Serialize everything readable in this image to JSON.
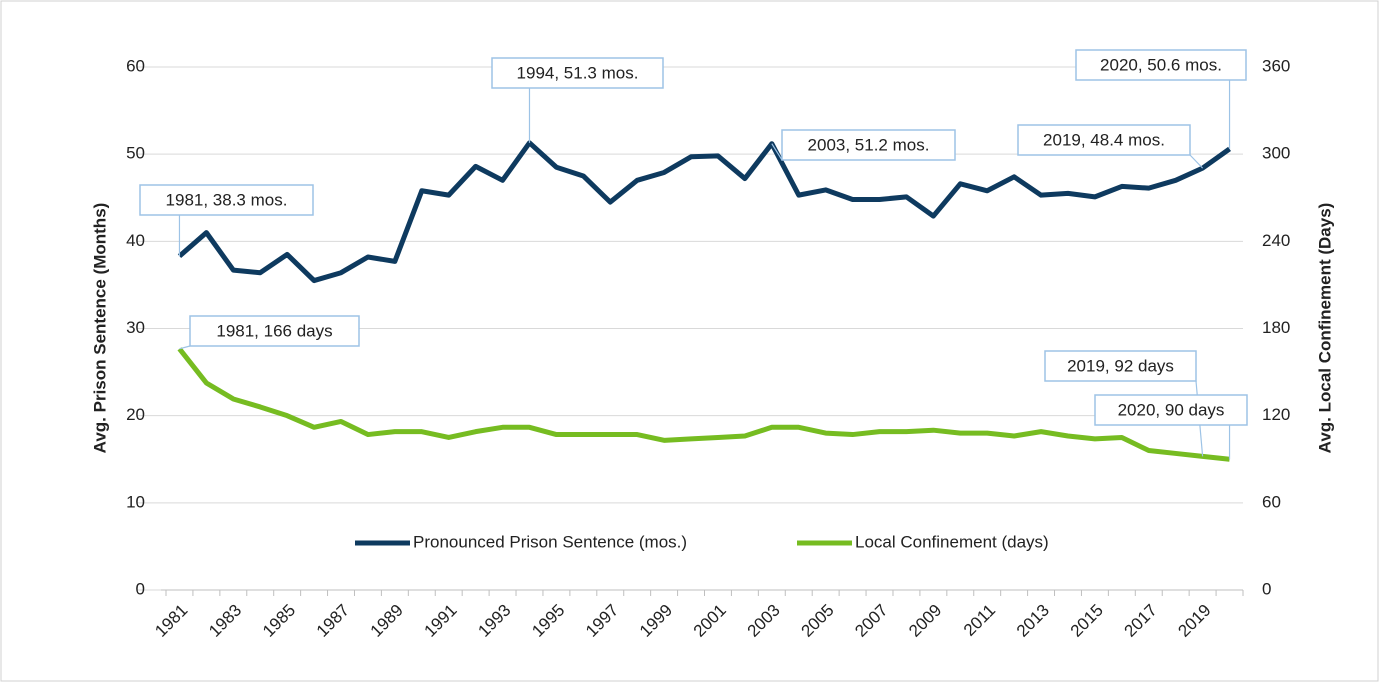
{
  "chart_data": {
    "type": "line",
    "categories": [
      "1981",
      null,
      "1983",
      null,
      "1985",
      null,
      "1987",
      null,
      "1989",
      null,
      "1991",
      null,
      "1993",
      null,
      "1995",
      null,
      "1997",
      null,
      "1999",
      null,
      "2001",
      null,
      "2003",
      null,
      "2005",
      null,
      "2007",
      null,
      "2009",
      null,
      "2011",
      null,
      "2013",
      null,
      "2015",
      null,
      "2017",
      null,
      "2019",
      null
    ],
    "series": [
      {
        "name": "Pronounced Prison Sentence (mos.)",
        "color": "#0e3a5f",
        "axis": "y",
        "values": [
          38.3,
          41.0,
          36.7,
          36.4,
          38.5,
          35.5,
          36.4,
          38.2,
          37.7,
          45.8,
          45.3,
          48.6,
          47.0,
          51.3,
          48.5,
          47.5,
          44.5,
          47.0,
          47.9,
          49.7,
          49.8,
          47.2,
          51.2,
          45.3,
          45.9,
          44.8,
          44.8,
          45.1,
          42.9,
          46.6,
          45.8,
          47.4,
          45.3,
          45.5,
          45.1,
          46.3,
          46.1,
          47.0,
          48.4,
          50.6
        ]
      },
      {
        "name": "Local Confinement (days)",
        "color": "#76bc21",
        "axis": "y2",
        "values": [
          166,
          142.5,
          131.5,
          126,
          120,
          112,
          116,
          107,
          109,
          109,
          105,
          109,
          112,
          112,
          107,
          107,
          107,
          107,
          103,
          104,
          105,
          106,
          112,
          112,
          108,
          107,
          109,
          109,
          110,
          108,
          108,
          106,
          109,
          106,
          104,
          105,
          96,
          94,
          92,
          90
        ]
      }
    ],
    "ylabel": "Avg. Prison Sentence (Months)",
    "y2label": "Avg. Local Confinement (Days)",
    "ylim": [
      0,
      60
    ],
    "yticks": [
      0,
      10,
      20,
      30,
      40,
      50,
      60
    ],
    "y2lim": [
      0,
      360
    ],
    "y2ticks": [
      0,
      60,
      120,
      180,
      240,
      300,
      360
    ],
    "grid": true,
    "legend": "bottom",
    "annotations": [
      "1981, 38.3 mos.",
      "1994, 51.3 mos.",
      "2003, 51.2 mos.",
      "2020, 50.6 mos.",
      "2019, 48.4 mos.",
      "1981, 166 days",
      "2019, 92 days",
      "2020, 90 days"
    ]
  }
}
